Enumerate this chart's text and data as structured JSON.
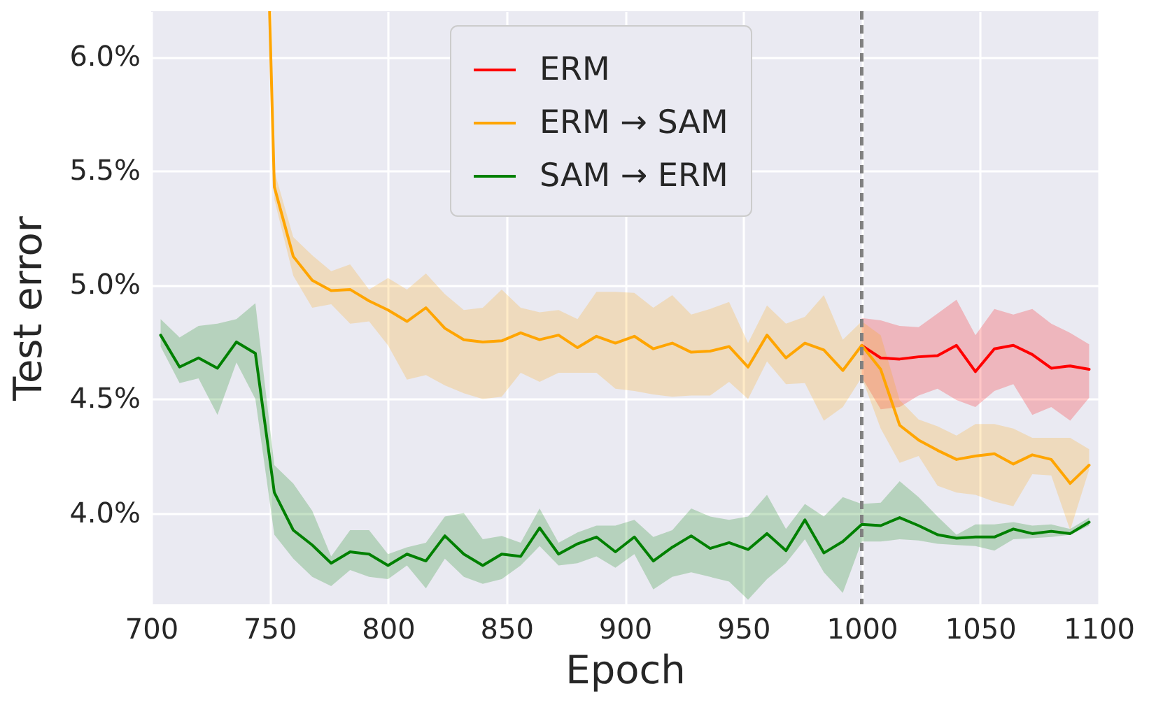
{
  "chart_data": {
    "type": "line",
    "xlabel": "Epoch",
    "ylabel": "Test error",
    "xlim": [
      700,
      1100
    ],
    "xticks": [
      700,
      750,
      800,
      850,
      900,
      950,
      1000,
      1050,
      1100
    ],
    "ylim": [
      3.6,
      6.2
    ],
    "yticks": [
      {
        "value": 4.0,
        "label": "4.0%"
      },
      {
        "value": 4.5,
        "label": "4.5%"
      },
      {
        "value": 5.0,
        "label": "5.0%"
      },
      {
        "value": 5.5,
        "label": "5.5%"
      },
      {
        "value": 6.0,
        "label": "6.0%"
      }
    ],
    "grid": true,
    "legend": "top",
    "line_style": "solid",
    "ref_lines": [
      {
        "axis": "x",
        "value": 1000,
        "label": null,
        "color": "#808080",
        "line_style": "dashed"
      }
    ],
    "series": [
      {
        "name": "ERM",
        "color": "#ff0000",
        "x": [
          1000,
          1008,
          1016,
          1024,
          1032,
          1040,
          1048,
          1056,
          1064,
          1072,
          1080,
          1088,
          1096
        ],
        "values": [
          4.735,
          4.68,
          4.675,
          4.685,
          4.69,
          4.735,
          4.62,
          4.72,
          4.735,
          4.695,
          4.635,
          4.645,
          4.63
        ],
        "lower": [
          4.595,
          4.455,
          4.465,
          4.515,
          4.545,
          4.495,
          4.465,
          4.535,
          4.565,
          4.43,
          4.465,
          4.405,
          4.505
        ],
        "upper": [
          4.855,
          4.845,
          4.82,
          4.815,
          4.875,
          4.935,
          4.78,
          4.895,
          4.87,
          4.895,
          4.83,
          4.79,
          4.74
        ]
      },
      {
        "name": "ERM → SAM",
        "color": "#ffa500",
        "x": [
          750,
          752,
          760,
          768,
          776,
          784,
          792,
          800,
          808,
          816,
          824,
          832,
          840,
          848,
          856,
          864,
          872,
          880,
          888,
          896,
          904,
          912,
          920,
          928,
          936,
          944,
          952,
          960,
          968,
          976,
          984,
          992,
          1000,
          1008,
          1016,
          1024,
          1032,
          1040,
          1048,
          1056,
          1064,
          1072,
          1080,
          1088,
          1096
        ],
        "values": [
          6.2,
          5.43,
          5.125,
          5.02,
          4.975,
          4.98,
          4.93,
          4.89,
          4.84,
          4.9,
          4.81,
          4.76,
          4.75,
          4.755,
          4.79,
          4.76,
          4.78,
          4.725,
          4.775,
          4.745,
          4.775,
          4.72,
          4.745,
          4.705,
          4.71,
          4.73,
          4.64,
          4.78,
          4.68,
          4.745,
          4.715,
          4.625,
          4.735,
          4.63,
          4.385,
          4.32,
          4.275,
          4.235,
          4.25,
          4.26,
          4.215,
          4.255,
          4.235,
          4.13,
          4.21
        ],
        "lower": [
          null,
          5.375,
          5.04,
          4.9,
          4.915,
          4.83,
          4.84,
          4.735,
          4.585,
          4.605,
          4.56,
          4.525,
          4.5,
          4.51,
          4.615,
          4.575,
          4.615,
          4.615,
          4.615,
          4.545,
          4.535,
          4.52,
          4.51,
          4.515,
          4.515,
          4.575,
          4.5,
          4.665,
          4.565,
          4.57,
          4.405,
          4.465,
          4.595,
          4.37,
          4.22,
          4.25,
          4.12,
          4.09,
          4.08,
          4.05,
          4.03,
          4.17,
          4.165,
          3.925,
          4.19
        ],
        "upper": [
          null,
          5.5,
          5.21,
          5.13,
          5.06,
          5.09,
          4.98,
          5.03,
          4.98,
          5.05,
          4.96,
          4.89,
          4.9,
          4.98,
          4.9,
          4.88,
          4.89,
          4.85,
          4.97,
          4.97,
          4.965,
          4.9,
          4.955,
          4.87,
          4.895,
          4.925,
          4.745,
          4.91,
          4.83,
          4.86,
          4.955,
          4.76,
          4.84,
          4.78,
          4.495,
          4.41,
          4.38,
          4.34,
          4.39,
          4.39,
          4.37,
          4.33,
          4.33,
          4.33,
          4.28
        ]
      },
      {
        "name": "SAM → ERM",
        "color": "#008000",
        "x": [
          704,
          712,
          720,
          728,
          736,
          744,
          752,
          760,
          768,
          776,
          784,
          792,
          800,
          808,
          816,
          824,
          832,
          840,
          848,
          856,
          864,
          872,
          880,
          888,
          896,
          904,
          912,
          920,
          928,
          936,
          944,
          952,
          960,
          968,
          976,
          984,
          992,
          1000,
          1008,
          1016,
          1024,
          1032,
          1040,
          1048,
          1056,
          1064,
          1072,
          1080,
          1088,
          1096
        ],
        "values": [
          4.78,
          4.64,
          4.68,
          4.635,
          4.75,
          4.7,
          4.09,
          3.925,
          3.86,
          3.78,
          3.83,
          3.82,
          3.77,
          3.82,
          3.79,
          3.9,
          3.82,
          3.77,
          3.82,
          3.81,
          3.935,
          3.82,
          3.865,
          3.895,
          3.83,
          3.895,
          3.79,
          3.85,
          3.9,
          3.845,
          3.87,
          3.84,
          3.91,
          3.835,
          3.97,
          3.825,
          3.875,
          3.95,
          3.945,
          3.98,
          3.945,
          3.905,
          3.89,
          3.895,
          3.895,
          3.93,
          3.91,
          3.92,
          3.91,
          3.96
        ],
        "lower": [
          4.73,
          4.57,
          4.59,
          4.43,
          4.66,
          4.5,
          3.905,
          3.8,
          3.72,
          3.68,
          3.75,
          3.72,
          3.71,
          3.77,
          3.67,
          3.8,
          3.72,
          3.69,
          3.71,
          3.77,
          3.855,
          3.77,
          3.78,
          3.81,
          3.76,
          3.82,
          3.665,
          3.72,
          3.74,
          3.72,
          3.7,
          3.62,
          3.71,
          3.78,
          3.885,
          3.74,
          3.65,
          3.875,
          3.875,
          3.885,
          3.88,
          3.865,
          3.86,
          3.855,
          3.835,
          3.885,
          3.89,
          3.895,
          3.905,
          3.945
        ],
        "upper": [
          4.85,
          4.77,
          4.82,
          4.83,
          4.85,
          4.92,
          4.21,
          4.13,
          4.01,
          3.81,
          3.925,
          3.925,
          3.82,
          3.85,
          3.87,
          3.985,
          4.0,
          3.885,
          3.9,
          3.87,
          4.02,
          3.87,
          3.915,
          3.945,
          3.945,
          3.97,
          3.895,
          3.925,
          4.02,
          3.985,
          3.97,
          3.985,
          4.08,
          3.93,
          4.04,
          3.985,
          4.07,
          4.04,
          4.045,
          4.14,
          4.07,
          3.985,
          3.905,
          3.95,
          3.95,
          3.96,
          3.945,
          3.95,
          3.93,
          3.98
        ]
      }
    ]
  }
}
